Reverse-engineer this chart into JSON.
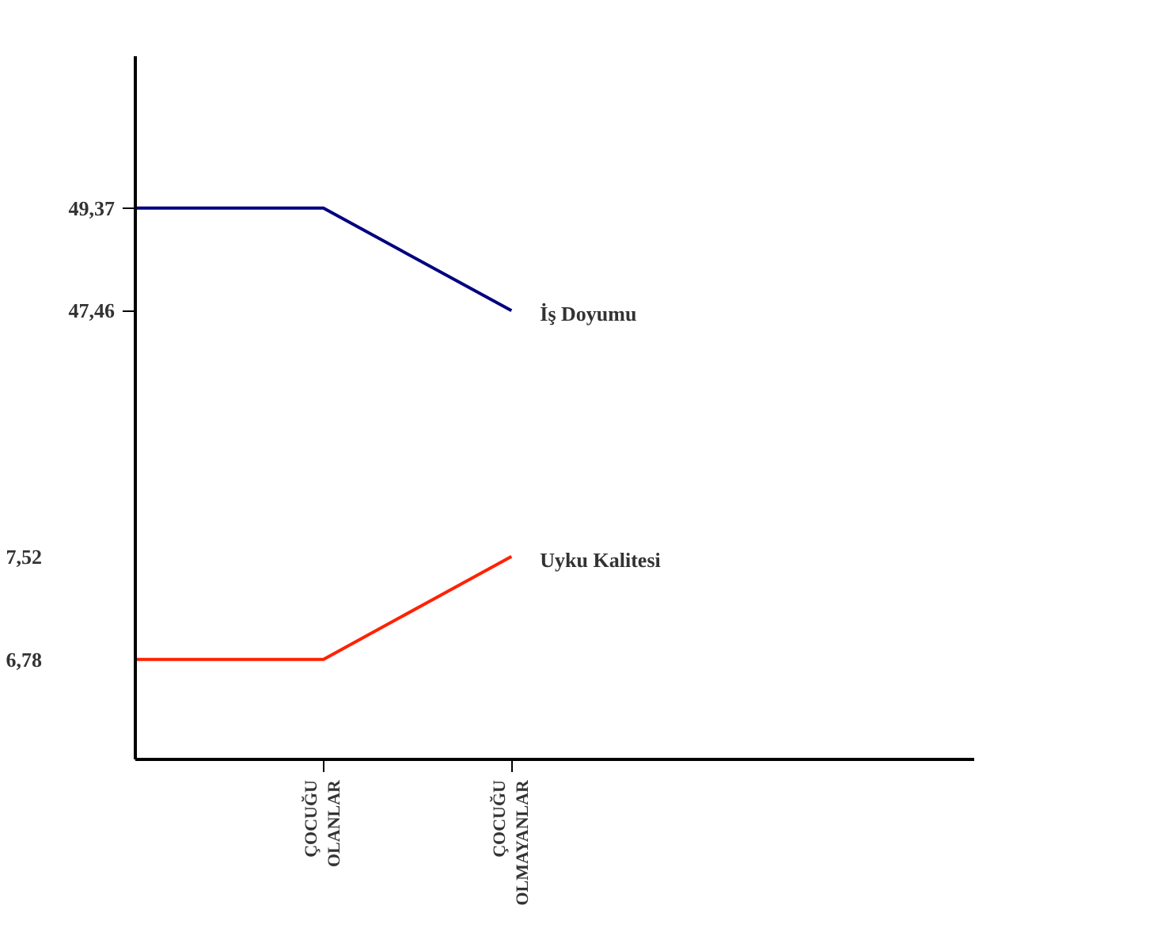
{
  "chart_data": {
    "type": "line",
    "categories": [
      null,
      "ÇOCUĞU\nOLANLAR",
      "ÇOCUĞU\nOLMAYANLAR"
    ],
    "series": [
      {
        "name": "İş Doyumu",
        "color": "#000080",
        "values": [
          49.37,
          49.37,
          47.46
        ]
      },
      {
        "name": "Uyku Kalitesi",
        "color": "#ff2200",
        "values": [
          6.78,
          6.78,
          7.52
        ],
        "axis": "y2"
      }
    ],
    "ylim": [
      39.1,
      52.2
    ],
    "yticks": [
      {
        "value": 47.46,
        "label": "47,46"
      },
      {
        "value": 49.37,
        "label": "49,37"
      }
    ],
    "y2lim": [
      6.06,
      11.12
    ],
    "y2ticks": [
      {
        "value": 6.78,
        "label": "6,78"
      },
      {
        "value": 7.52,
        "label": "7,52"
      }
    ],
    "grid": false
  }
}
